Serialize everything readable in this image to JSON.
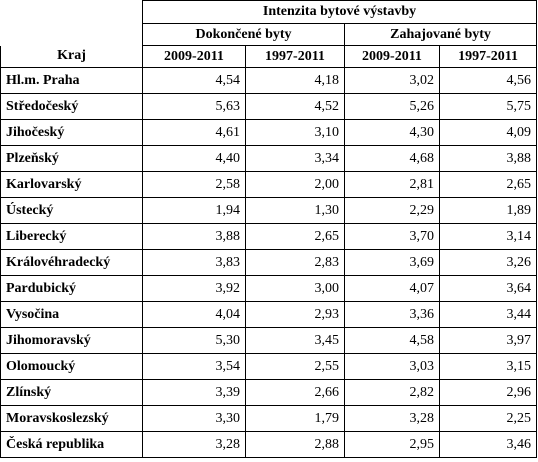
{
  "header": {
    "group_title": "Intenzita bytové výstavby",
    "subgroup_completed": "Dokončené byty",
    "subgroup_started": "Zahajované byty",
    "col_region": "Kraj",
    "col_p1": "2009-2011",
    "col_p2": "1997-2011",
    "col_p3": "2009-2011",
    "col_p4": "1997-2011"
  },
  "rows": [
    {
      "region": "Hl.m. Praha",
      "c1": "4,54",
      "c2": "4,18",
      "z1": "3,02",
      "z2": "4,56"
    },
    {
      "region": "Středočeský",
      "c1": "5,63",
      "c2": "4,52",
      "z1": "5,26",
      "z2": "5,75"
    },
    {
      "region": "Jihočeský",
      "c1": "4,61",
      "c2": "3,10",
      "z1": "4,30",
      "z2": "4,09"
    },
    {
      "region": "Plzeňský",
      "c1": "4,40",
      "c2": "3,34",
      "z1": "4,68",
      "z2": "3,88"
    },
    {
      "region": "Karlovarský",
      "c1": "2,58",
      "c2": "2,00",
      "z1": "2,81",
      "z2": "2,65"
    },
    {
      "region": "Ústecký",
      "c1": "1,94",
      "c2": "1,30",
      "z1": "2,29",
      "z2": "1,89"
    },
    {
      "region": "Liberecký",
      "c1": "3,88",
      "c2": "2,65",
      "z1": "3,70",
      "z2": "3,14"
    },
    {
      "region": "Královéhradecký",
      "c1": "3,83",
      "c2": "2,83",
      "z1": "3,69",
      "z2": "3,26"
    },
    {
      "region": "Pardubický",
      "c1": "3,92",
      "c2": "3,00",
      "z1": "4,07",
      "z2": "3,64"
    },
    {
      "region": "Vysočina",
      "c1": "4,04",
      "c2": "2,93",
      "z1": "3,36",
      "z2": "3,44"
    },
    {
      "region": "Jihomoravský",
      "c1": "5,30",
      "c2": "3,45",
      "z1": "4,58",
      "z2": "3,97"
    },
    {
      "region": "Olomoucký",
      "c1": "3,54",
      "c2": "2,55",
      "z1": "3,03",
      "z2": "3,15"
    },
    {
      "region": "Zlínský",
      "c1": "3,39",
      "c2": "2,66",
      "z1": "2,82",
      "z2": "2,96"
    },
    {
      "region": "Moravskoslezský",
      "c1": "3,30",
      "c2": "1,79",
      "z1": "3,28",
      "z2": "2,25"
    },
    {
      "region": "Česká republika",
      "c1": "3,28",
      "c2": "2,88",
      "z1": "2,95",
      "z2": "3,46"
    }
  ]
}
